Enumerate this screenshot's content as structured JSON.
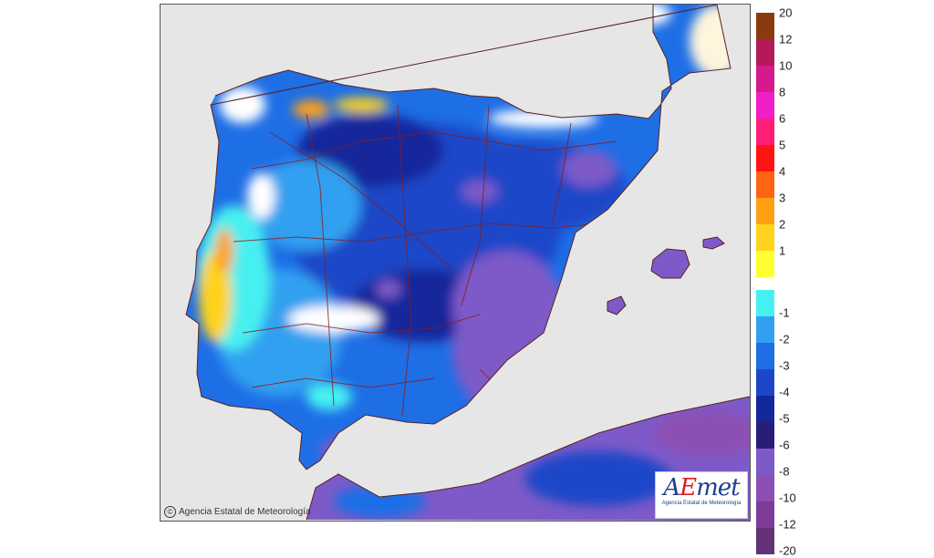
{
  "map": {
    "copyright": "Agencia Estatal de Meteorología",
    "copyright_symbol": "©",
    "logo": {
      "word_first": "A",
      "word_accent": "E",
      "word_rest": "met",
      "subtitle": "Agencia Estatal de Meteorología"
    },
    "colors": {
      "sea": "#e6e6e6",
      "boundary": "#8a1a1a",
      "coast": "#5a2020"
    }
  },
  "legend": {
    "positive": [
      {
        "label": "20",
        "color": "#8b3a0f"
      },
      {
        "label": "12",
        "color": "#b4195a"
      },
      {
        "label": "10",
        "color": "#d41a8c"
      },
      {
        "label": "8",
        "color": "#f01ec8"
      },
      {
        "label": "6",
        "color": "#ff1e78"
      },
      {
        "label": "5",
        "color": "#ff1414"
      },
      {
        "label": "4",
        "color": "#ff6414"
      },
      {
        "label": "3",
        "color": "#ffa014"
      },
      {
        "label": "2",
        "color": "#ffd21e"
      },
      {
        "label": "1",
        "color": "#ffff32"
      }
    ],
    "negative": [
      {
        "label": "-1",
        "color": "#46f0f0"
      },
      {
        "label": "-2",
        "color": "#32a0f0"
      },
      {
        "label": "-3",
        "color": "#1e6ee6"
      },
      {
        "label": "-4",
        "color": "#1e46c8"
      },
      {
        "label": "-5",
        "color": "#14289b"
      },
      {
        "label": "-6",
        "color": "#281e78"
      },
      {
        "label": "-8",
        "color": "#7d5ac8"
      },
      {
        "label": "-10",
        "color": "#8c50b4"
      },
      {
        "label": "-12",
        "color": "#7d3c96"
      },
      {
        "label": "-20",
        "color": "#643278"
      }
    ],
    "white_band_color": "#ffffff"
  }
}
